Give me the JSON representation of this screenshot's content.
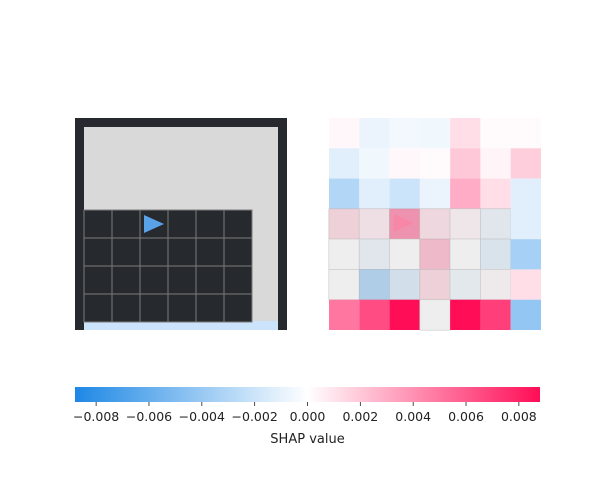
{
  "chart_data": [
    {
      "type": "image",
      "description_label": "",
      "grid_rows": 7,
      "grid_cols": 7,
      "agent": {
        "row": 3,
        "col": 2,
        "direction": "right",
        "color": "#5aa2e8"
      },
      "colors": {
        "frame": "#262a2f",
        "floor": "#d9d9d9",
        "cell": "#262a2f",
        "cell_border": "#7a7a7a",
        "goal_strip": "#cce4fb"
      }
    },
    {
      "type": "heatmap",
      "rows": 7,
      "cols": 7,
      "values": [
        [
          0.0003,
          -0.0008,
          -0.0005,
          -0.0006,
          0.0012,
          0.0002,
          0.0002
        ],
        [
          -0.0012,
          -0.0006,
          0.0003,
          0.0002,
          0.002,
          0.0004,
          0.0018
        ],
        [
          -0.003,
          -0.0012,
          -0.002,
          -0.0008,
          0.003,
          0.0012,
          -0.0012
        ],
        [
          0.002,
          0.001,
          0.006,
          0.0015,
          0.0005,
          -0.001,
          -0.0012
        ],
        [
          0.0,
          -0.001,
          0.0,
          0.0035,
          0.0,
          -0.0015,
          -0.0035
        ],
        [
          0.0,
          -0.0045,
          -0.002,
          0.002,
          -0.0008,
          0.0003,
          0.0012
        ],
        [
          0.005,
          0.0065,
          0.009,
          0.0,
          0.009,
          0.007,
          -0.0042
        ]
      ],
      "grey_cells": [
        [
          3,
          0
        ],
        [
          3,
          1
        ],
        [
          3,
          2
        ],
        [
          3,
          3
        ],
        [
          3,
          4
        ],
        [
          3,
          5
        ],
        [
          4,
          0
        ],
        [
          4,
          1
        ],
        [
          4,
          2
        ],
        [
          4,
          3
        ],
        [
          4,
          4
        ],
        [
          4,
          5
        ],
        [
          5,
          0
        ],
        [
          5,
          1
        ],
        [
          5,
          2
        ],
        [
          5,
          3
        ],
        [
          5,
          4
        ],
        [
          5,
          5
        ],
        [
          6,
          3
        ]
      ],
      "overlay_agent": {
        "row": 3,
        "col": 2,
        "direction": "right"
      }
    },
    {
      "type": "colorbar",
      "xlabel": "SHAP value",
      "xlim": [
        -0.0088,
        0.0088
      ],
      "ticks": [
        -0.008,
        -0.006,
        -0.004,
        -0.002,
        0.0,
        0.002,
        0.004,
        0.006,
        0.008
      ],
      "tick_labels": [
        "−0.008",
        "−0.006",
        "−0.004",
        "−0.002",
        "0.000",
        "0.002",
        "0.004",
        "0.006",
        "0.008"
      ],
      "colors": {
        "negative": "#1e88e5",
        "neutral": "#ffffff",
        "positive": "#ff0d57"
      }
    }
  ]
}
